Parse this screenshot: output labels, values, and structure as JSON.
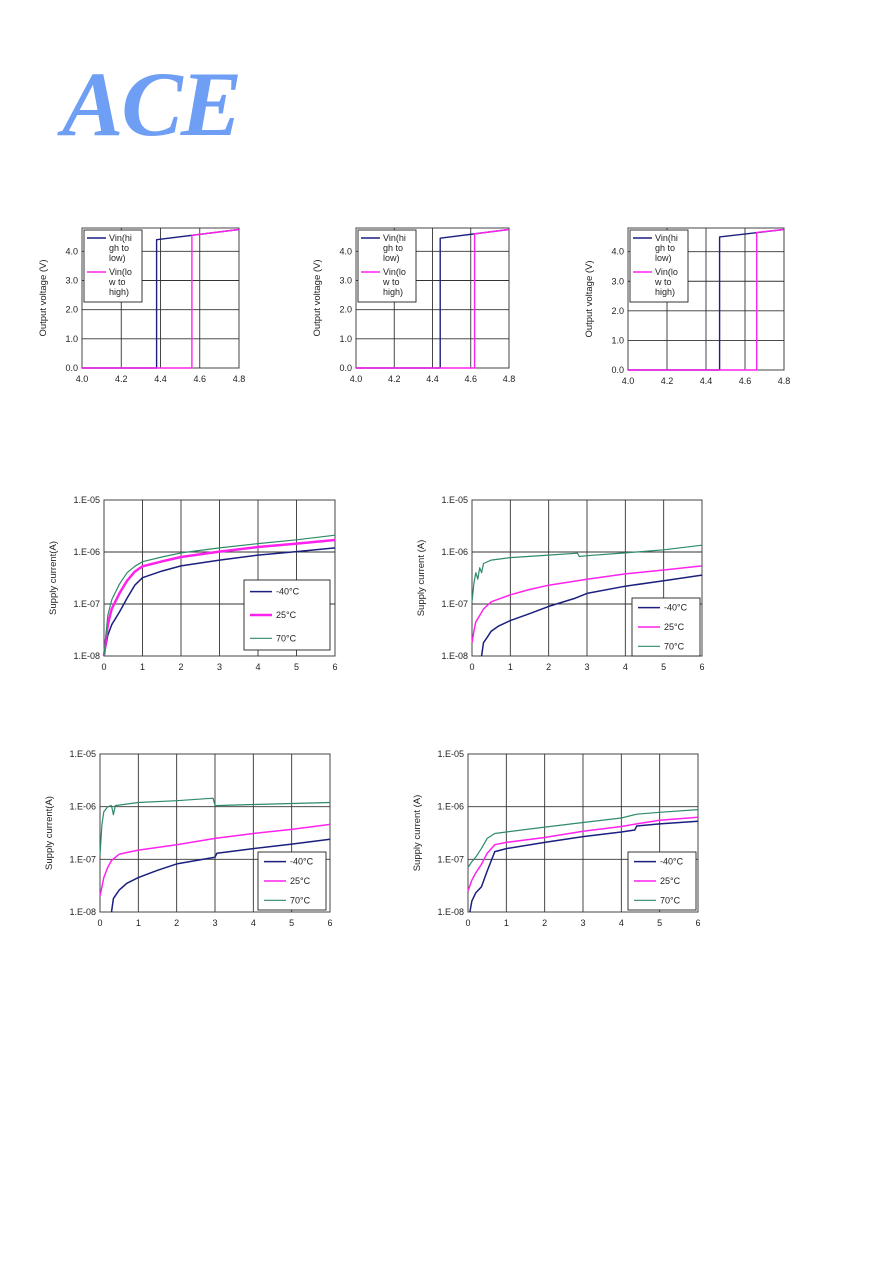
{
  "brand": {
    "logo_text": "ACE",
    "logo_color": "#6f9ff5"
  },
  "colors": {
    "navy": "#1b1f7e",
    "magenta": "#ff22ee",
    "green": "#2e8b67"
  },
  "chart_data": [
    {
      "type": "line",
      "ylabel": "Output voltage (V)",
      "xlim": [
        4.0,
        4.8
      ],
      "ylim": [
        0,
        4.8
      ],
      "x_ticks": [
        "4.0",
        "4.2",
        "4.4",
        "4.6",
        "4.8"
      ],
      "y_ticks": [
        "0.0",
        "1.0",
        "2.0",
        "3.0",
        "4.0"
      ],
      "grid": true,
      "legend_position": "top-left",
      "series": [
        {
          "name": "Vin(high to low)",
          "legend_lines": [
            "Vin(hi",
            "gh to",
            "low)"
          ],
          "color": "#1b1f7e",
          "points": [
            [
              4.0,
              0
            ],
            [
              4.38,
              0
            ],
            [
              4.38,
              4.4
            ],
            [
              4.8,
              4.75
            ]
          ]
        },
        {
          "name": "Vin(low to high)",
          "legend_lines": [
            "Vin(lo",
            "w to",
            "high)"
          ],
          "color": "#ff22ee",
          "points": [
            [
              4.0,
              0
            ],
            [
              4.56,
              0
            ],
            [
              4.56,
              4.55
            ],
            [
              4.8,
              4.75
            ]
          ]
        }
      ]
    },
    {
      "type": "line",
      "ylabel": "Output voltage (V)",
      "xlim": [
        4.0,
        4.8
      ],
      "ylim": [
        0,
        4.8
      ],
      "x_ticks": [
        "4.0",
        "4.2",
        "4.4",
        "4.6",
        "4.8"
      ],
      "y_ticks": [
        "0.0",
        "1.0",
        "2.0",
        "3.0",
        "4.0"
      ],
      "grid": true,
      "legend_position": "top-left",
      "series": [
        {
          "name": "Vin(high to low)",
          "legend_lines": [
            "Vin(hi",
            "gh to",
            "low)"
          ],
          "color": "#1b1f7e",
          "points": [
            [
              4.0,
              0
            ],
            [
              4.44,
              0
            ],
            [
              4.44,
              4.45
            ],
            [
              4.8,
              4.75
            ]
          ]
        },
        {
          "name": "Vin(low to high)",
          "legend_lines": [
            "Vin(lo",
            "w to",
            "high)"
          ],
          "color": "#ff22ee",
          "points": [
            [
              4.0,
              0
            ],
            [
              4.62,
              0
            ],
            [
              4.62,
              4.6
            ],
            [
              4.8,
              4.75
            ]
          ]
        }
      ]
    },
    {
      "type": "line",
      "ylabel": "Output voltage (V)",
      "xlim": [
        4.0,
        4.8
      ],
      "ylim": [
        0,
        4.8
      ],
      "x_ticks": [
        "4.0",
        "4.2",
        "4.4",
        "4.6",
        "4.8"
      ],
      "y_ticks": [
        "0.0",
        "1.0",
        "2.0",
        "3.0",
        "4.0"
      ],
      "grid": true,
      "legend_position": "top-left",
      "series": [
        {
          "name": "Vin(high to low)",
          "legend_lines": [
            "Vin(hi",
            "gh to",
            "low)"
          ],
          "color": "#1b1f7e",
          "points": [
            [
              4.0,
              0
            ],
            [
              4.47,
              0
            ],
            [
              4.47,
              4.5
            ],
            [
              4.8,
              4.75
            ]
          ]
        },
        {
          "name": "Vin(low to high)",
          "legend_lines": [
            "Vin(lo",
            "w to",
            "high)"
          ],
          "color": "#ff22ee",
          "points": [
            [
              4.0,
              0
            ],
            [
              4.66,
              0
            ],
            [
              4.66,
              4.65
            ],
            [
              4.8,
              4.75
            ]
          ]
        }
      ]
    },
    {
      "type": "line",
      "ylabel": "Supply current(A)",
      "y_scale": "log",
      "xlim": [
        0,
        6
      ],
      "ylim": [
        1e-08,
        1e-05
      ],
      "x_ticks": [
        "0",
        "1",
        "2",
        "3",
        "4",
        "5",
        "6"
      ],
      "y_ticks": [
        "1.E-08",
        "1.E-07",
        "1.E-06",
        "1.E-05"
      ],
      "grid": true,
      "legend_position": "bottom-right",
      "series": [
        {
          "name": "-40°C",
          "color": "#1b1f7e",
          "width": 1.5,
          "points": [
            [
              0,
              1e-08
            ],
            [
              0.1,
              2.5e-08
            ],
            [
              0.2,
              4e-08
            ],
            [
              0.4,
              7e-08
            ],
            [
              0.6,
              1.3e-07
            ],
            [
              0.8,
              2.3e-07
            ],
            [
              1,
              3.2e-07
            ],
            [
              1.5,
              4.3e-07
            ],
            [
              2,
              5.4e-07
            ],
            [
              3,
              7e-07
            ],
            [
              4,
              8.7e-07
            ],
            [
              5,
              1.02e-06
            ],
            [
              6,
              1.2e-06
            ]
          ]
        },
        {
          "name": "25°C",
          "color": "#ff22ee",
          "width": 2.5,
          "points": [
            [
              0,
              1e-08
            ],
            [
              0.1,
              4e-08
            ],
            [
              0.2,
              8e-08
            ],
            [
              0.4,
              1.6e-07
            ],
            [
              0.6,
              2.8e-07
            ],
            [
              0.8,
              4.2e-07
            ],
            [
              1,
              5.3e-07
            ],
            [
              1.5,
              6.6e-07
            ],
            [
              2,
              8e-07
            ],
            [
              3,
              1.02e-06
            ],
            [
              4,
              1.25e-06
            ],
            [
              5,
              1.45e-06
            ],
            [
              6,
              1.7e-06
            ]
          ]
        },
        {
          "name": "70°C",
          "color": "#2e8b67",
          "width": 1.2,
          "points": [
            [
              0,
              1e-08
            ],
            [
              0.1,
              6e-08
            ],
            [
              0.2,
              1.2e-07
            ],
            [
              0.4,
              2.4e-07
            ],
            [
              0.6,
              4e-07
            ],
            [
              0.8,
              5.3e-07
            ],
            [
              1,
              6.5e-07
            ],
            [
              1.5,
              8e-07
            ],
            [
              2,
              9.6e-07
            ],
            [
              3,
              1.2e-06
            ],
            [
              4,
              1.45e-06
            ],
            [
              5,
              1.72e-06
            ],
            [
              6,
              2.1e-06
            ]
          ]
        }
      ]
    },
    {
      "type": "line",
      "ylabel": "Supply current (A)",
      "y_scale": "log",
      "xlim": [
        0,
        6
      ],
      "ylim": [
        1e-08,
        1e-05
      ],
      "x_ticks": [
        "0",
        "1",
        "2",
        "3",
        "4",
        "5",
        "6"
      ],
      "y_ticks": [
        "1.E-08",
        "1.E-07",
        "1.E-06",
        "1.E-05"
      ],
      "grid": true,
      "legend_position": "bottom-right",
      "series": [
        {
          "name": "-40°C",
          "color": "#1b1f7e",
          "width": 1.5,
          "points": [
            [
              0.25,
              1e-08
            ],
            [
              0.3,
              1.8e-08
            ],
            [
              0.4,
              2.3e-08
            ],
            [
              0.5,
              3e-08
            ],
            [
              0.7,
              3.8e-08
            ],
            [
              1,
              4.8e-08
            ],
            [
              1.5,
              6.5e-08
            ],
            [
              2,
              9e-08
            ],
            [
              2.7,
              1.3e-07
            ],
            [
              3,
              1.6e-07
            ],
            [
              4,
              2.2e-07
            ],
            [
              5,
              2.8e-07
            ],
            [
              6,
              3.6e-07
            ]
          ]
        },
        {
          "name": "25°C",
          "color": "#ff22ee",
          "width": 1.5,
          "points": [
            [
              0,
              1.8e-08
            ],
            [
              0.05,
              3e-08
            ],
            [
              0.1,
              4.5e-08
            ],
            [
              0.2,
              6e-08
            ],
            [
              0.3,
              8e-08
            ],
            [
              0.5,
              1.1e-07
            ],
            [
              1,
              1.5e-07
            ],
            [
              1.5,
              1.9e-07
            ],
            [
              2,
              2.3e-07
            ],
            [
              3,
              3e-07
            ],
            [
              4,
              3.8e-07
            ],
            [
              5,
              4.5e-07
            ],
            [
              6,
              5.4e-07
            ]
          ]
        },
        {
          "name": "70°C",
          "color": "#2e8b67",
          "width": 1.2,
          "points": [
            [
              0,
              1.1e-07
            ],
            [
              0.05,
              2.5e-07
            ],
            [
              0.1,
              4e-07
            ],
            [
              0.15,
              3e-07
            ],
            [
              0.2,
              5e-07
            ],
            [
              0.25,
              4e-07
            ],
            [
              0.3,
              6e-07
            ],
            [
              0.5,
              7e-07
            ],
            [
              1,
              7.8e-07
            ],
            [
              2,
              8.7e-07
            ],
            [
              2.75,
              9.5e-07
            ],
            [
              2.8,
              8.2e-07
            ],
            [
              3,
              8.5e-07
            ],
            [
              4,
              9.6e-07
            ],
            [
              5,
              1.1e-06
            ],
            [
              6,
              1.35e-06
            ]
          ]
        }
      ]
    },
    {
      "type": "line",
      "ylabel": "Supply current(A)",
      "y_scale": "log",
      "xlim": [
        0,
        6
      ],
      "ylim": [
        1e-08,
        1e-05
      ],
      "x_ticks": [
        "0",
        "1",
        "2",
        "3",
        "4",
        "5",
        "6"
      ],
      "y_ticks": [
        "1.E-08",
        "1.E-07",
        "1.E-06",
        "1.E-05"
      ],
      "grid": true,
      "legend_position": "bottom-right",
      "series": [
        {
          "name": "-40°C",
          "color": "#1b1f7e",
          "width": 1.5,
          "points": [
            [
              0.3,
              1e-08
            ],
            [
              0.35,
              1.8e-08
            ],
            [
              0.5,
              2.6e-08
            ],
            [
              0.7,
              3.5e-08
            ],
            [
              1,
              4.5e-08
            ],
            [
              1.5,
              6.2e-08
            ],
            [
              2,
              8.2e-08
            ],
            [
              3,
              1.1e-07
            ],
            [
              3.05,
              1.3e-07
            ],
            [
              4,
              1.6e-07
            ],
            [
              5,
              1.95e-07
            ],
            [
              6,
              2.4e-07
            ]
          ]
        },
        {
          "name": "25°C",
          "color": "#ff22ee",
          "width": 1.5,
          "points": [
            [
              0,
              2e-08
            ],
            [
              0.1,
              4.5e-08
            ],
            [
              0.2,
              7e-08
            ],
            [
              0.3,
              9.5e-08
            ],
            [
              0.5,
              1.25e-07
            ],
            [
              1,
              1.5e-07
            ],
            [
              2,
              1.9e-07
            ],
            [
              3,
              2.5e-07
            ],
            [
              4,
              3.1e-07
            ],
            [
              5,
              3.7e-07
            ],
            [
              6,
              4.6e-07
            ]
          ]
        },
        {
          "name": "70°C",
          "color": "#2e8b67",
          "width": 1.2,
          "points": [
            [
              0,
              1.2e-07
            ],
            [
              0.05,
              4.5e-07
            ],
            [
              0.1,
              8e-07
            ],
            [
              0.2,
              1e-06
            ],
            [
              0.3,
              1.05e-06
            ],
            [
              0.35,
              7e-07
            ],
            [
              0.4,
              1.05e-06
            ],
            [
              1,
              1.2e-06
            ],
            [
              2,
              1.3e-06
            ],
            [
              2.95,
              1.45e-06
            ],
            [
              3,
              1.05e-06
            ],
            [
              4,
              1.1e-06
            ],
            [
              5,
              1.15e-06
            ],
            [
              6,
              1.2e-06
            ]
          ]
        }
      ]
    },
    {
      "type": "line",
      "ylabel": "Supply current (A)",
      "y_scale": "log",
      "xlim": [
        0,
        6
      ],
      "ylim": [
        1e-08,
        1e-05
      ],
      "x_ticks": [
        "0",
        "1",
        "2",
        "3",
        "4",
        "5",
        "6"
      ],
      "y_ticks": [
        "1.E-08",
        "1.E-07",
        "1.E-06",
        "1.E-05"
      ],
      "grid": true,
      "legend_position": "bottom-right",
      "series": [
        {
          "name": "-40°C",
          "color": "#1b1f7e",
          "width": 1.5,
          "points": [
            [
              0.05,
              1e-08
            ],
            [
              0.1,
              1.6e-08
            ],
            [
              0.2,
              2.3e-08
            ],
            [
              0.35,
              3e-08
            ],
            [
              0.5,
              6e-08
            ],
            [
              0.7,
              1.4e-07
            ],
            [
              1,
              1.6e-07
            ],
            [
              2,
              2.1e-07
            ],
            [
              3,
              2.7e-07
            ],
            [
              4,
              3.3e-07
            ],
            [
              4.35,
              3.6e-07
            ],
            [
              4.4,
              4.3e-07
            ],
            [
              5,
              4.7e-07
            ],
            [
              6,
              5.3e-07
            ]
          ]
        },
        {
          "name": "25°C",
          "color": "#ff22ee",
          "width": 1.5,
          "points": [
            [
              0,
              2.5e-08
            ],
            [
              0.1,
              4e-08
            ],
            [
              0.2,
              5.5e-08
            ],
            [
              0.35,
              8e-08
            ],
            [
              0.5,
              1.3e-07
            ],
            [
              0.7,
              1.9e-07
            ],
            [
              1,
              2.1e-07
            ],
            [
              2,
              2.6e-07
            ],
            [
              3,
              3.4e-07
            ],
            [
              4,
              4.2e-07
            ],
            [
              4.4,
              4.7e-07
            ],
            [
              5,
              5.5e-07
            ],
            [
              6,
              6.3e-07
            ]
          ]
        },
        {
          "name": "70°C",
          "color": "#2e8b67",
          "width": 1.2,
          "points": [
            [
              0,
              7e-08
            ],
            [
              0.1,
              9e-08
            ],
            [
              0.2,
              1.1e-07
            ],
            [
              0.35,
              1.6e-07
            ],
            [
              0.5,
              2.5e-07
            ],
            [
              0.7,
              3.1e-07
            ],
            [
              1,
              3.3e-07
            ],
            [
              2,
              4.1e-07
            ],
            [
              3,
              5e-07
            ],
            [
              4,
              6.1e-07
            ],
            [
              4.4,
              7.2e-07
            ],
            [
              5,
              7.8e-07
            ],
            [
              6,
              8.8e-07
            ]
          ]
        }
      ]
    }
  ]
}
